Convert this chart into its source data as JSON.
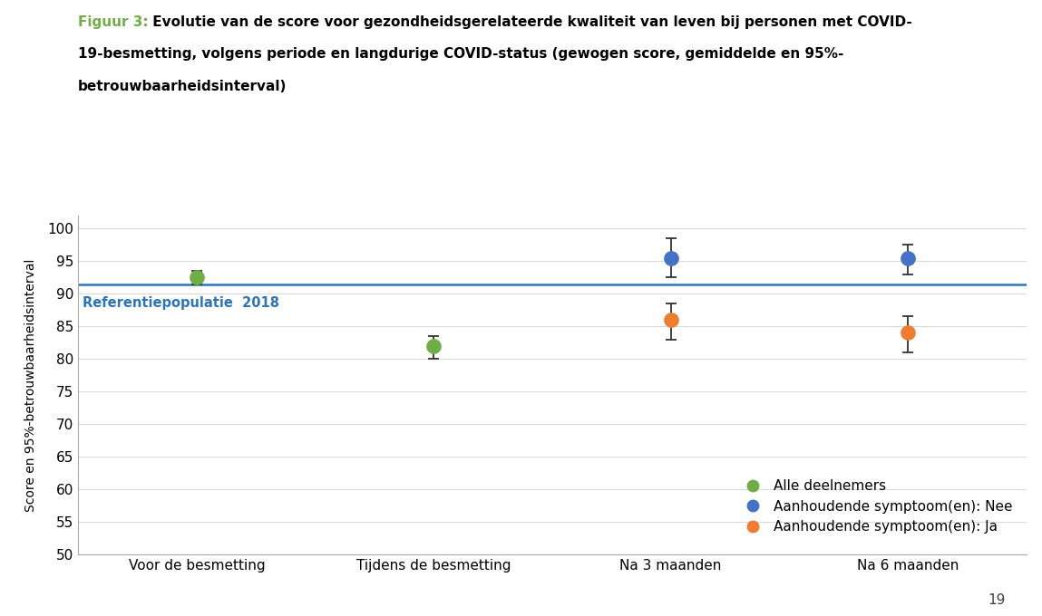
{
  "title_figuur": "Figuur 3:",
  "title_line1": " Evolutie van de score voor gezondheidsgerelateerde kwaliteit van leven bij personen met COVID-",
  "title_line2": "19-besmetting, volgens periode en langdurige COVID-status (gewogen score, gemiddelde en 95%-",
  "title_line3": "betrouwbaarheidsinterval)",
  "xlabel": "",
  "ylabel": "Score en 95%-betrouwbaarheidsinterval",
  "ylim": [
    50,
    102
  ],
  "yticks": [
    50,
    55,
    60,
    65,
    70,
    75,
    80,
    85,
    90,
    95,
    100
  ],
  "x_labels": [
    "Voor de besmetting",
    "Tijdens de besmetting",
    "Na 3 maanden",
    "Na 6 maanden"
  ],
  "x_positions": [
    0,
    1,
    2,
    3
  ],
  "reference_line_y": 91.4,
  "reference_label": "Referentiepopulatie  2018",
  "reference_color": "#2E75B6",
  "series": [
    {
      "name": "Alle deelnemers",
      "color": "#70AD47",
      "x": [
        0,
        1
      ],
      "y": [
        92.5,
        82.0
      ],
      "yerr_low": [
        1.0,
        2.0
      ],
      "yerr_high": [
        1.0,
        1.5
      ]
    },
    {
      "name": "Aanhoudende symptoom(en): Nee",
      "color": "#4472C4",
      "x": [
        2,
        3
      ],
      "y": [
        95.5,
        95.5
      ],
      "yerr_low": [
        3.0,
        2.5
      ],
      "yerr_high": [
        3.0,
        2.0
      ]
    },
    {
      "name": "Aanhoudende symptoom(en): Ja",
      "color": "#ED7D31",
      "x": [
        2,
        3
      ],
      "y": [
        86.0,
        84.0
      ],
      "yerr_low": [
        3.0,
        3.0
      ],
      "yerr_high": [
        2.5,
        2.5
      ]
    }
  ],
  "page_number": "19",
  "background_color": "#FFFFFF",
  "plot_bg_color": "#FFFFFF",
  "grid_color": "#D9D9D9",
  "title_color_figuur": "#70AD47",
  "title_color_rest": "#000000"
}
